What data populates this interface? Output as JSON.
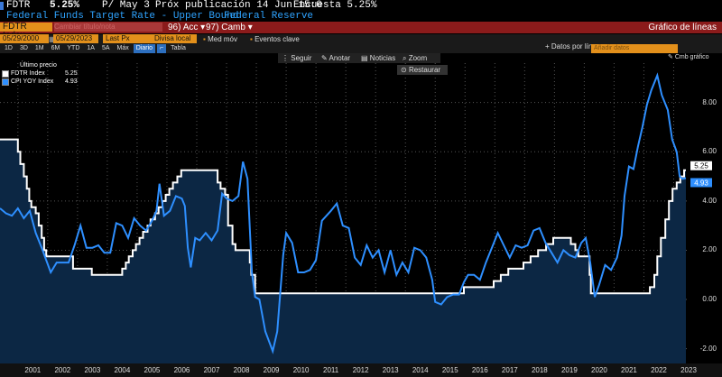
{
  "header": {
    "ticker": "FDTR",
    "value": "5.25%",
    "period": "P/ May 3",
    "next_pub": "Próx publicación 14 Jun 15:0",
    "survey": "Encuesta 5.25%",
    "title": "Federal Funds Target Rate - Upper Bound",
    "source": "Federal Reserve"
  },
  "redbar": {
    "index_label": "FDTR Index",
    "field_placeholder": "Cambiar título/nota",
    "acc_num": "96",
    "acc_label": "Acc",
    "camb_num": "97",
    "camb_label": "Camb",
    "chart_type": "Gráfico de líneas"
  },
  "controls": {
    "start_date": "05/29/2000",
    "end_date": "05/29/2023",
    "field": "Last Px",
    "currency": "Divisa local",
    "med_mov": "Med móv",
    "events": "Eventos clave",
    "periods": [
      "1D",
      "3D",
      "1M",
      "6M",
      "YTD",
      "1A",
      "5A",
      "Máx"
    ],
    "frequency": "Diario",
    "table": "Tabla",
    "data_per": "Datos por lín",
    "add_data": "Añadir datos",
    "chart_menu": "Cmb gráfico"
  },
  "toolbar": {
    "follow": "Seguir",
    "annotate": "Anotar",
    "news": "Noticias",
    "zoom": "Zoom",
    "restore": "Restaurar"
  },
  "legend": {
    "title": "Último precio",
    "items": [
      {
        "name": "FDTR Index",
        "value": "5.25",
        "color": "#ffffff"
      },
      {
        "name": "CPI YOY Index",
        "value": "4.93",
        "color": "#2e8fff"
      }
    ]
  },
  "colors": {
    "area_fill": "#0c2744",
    "fdtr_line": "#ffffff",
    "cpi_line": "#2e8fff",
    "accent": "#e3901b",
    "red": "#8b1b1b"
  },
  "chart_data": {
    "type": "line",
    "title": "",
    "xlabel": "",
    "ylabel": "",
    "ylim": [
      -2.6,
      9.6
    ],
    "y_ticks": [
      "8.00",
      "6.00",
      "4.00",
      "2.00",
      "0.00",
      "-2.00"
    ],
    "x_ticks": [
      "2001",
      "2002",
      "2003",
      "2004",
      "2005",
      "2006",
      "2007",
      "2008",
      "2009",
      "2010",
      "2011",
      "2012",
      "2013",
      "2014",
      "2015",
      "2016",
      "2017",
      "2018",
      "2019",
      "2020",
      "2021",
      "2022",
      "2023"
    ],
    "last_labels": {
      "fdtr": "5.25",
      "cpi": "4.93"
    },
    "series": [
      {
        "name": "FDTR Index",
        "points": [
          [
            2000.4,
            6.5
          ],
          [
            2000.95,
            6.5
          ],
          [
            2001.0,
            6.0
          ],
          [
            2001.08,
            5.5
          ],
          [
            2001.2,
            5.0
          ],
          [
            2001.3,
            4.5
          ],
          [
            2001.38,
            4.0
          ],
          [
            2001.45,
            3.75
          ],
          [
            2001.6,
            3.5
          ],
          [
            2001.7,
            3.0
          ],
          [
            2001.8,
            2.5
          ],
          [
            2001.88,
            2.0
          ],
          [
            2001.95,
            1.75
          ],
          [
            2002.85,
            1.25
          ],
          [
            2003.48,
            1.0
          ],
          [
            2004.5,
            1.25
          ],
          [
            2004.62,
            1.5
          ],
          [
            2004.72,
            1.75
          ],
          [
            2004.85,
            2.0
          ],
          [
            2004.96,
            2.25
          ],
          [
            2005.08,
            2.5
          ],
          [
            2005.2,
            2.75
          ],
          [
            2005.35,
            3.0
          ],
          [
            2005.45,
            3.25
          ],
          [
            2005.6,
            3.5
          ],
          [
            2005.72,
            3.75
          ],
          [
            2005.85,
            4.0
          ],
          [
            2005.96,
            4.25
          ],
          [
            2006.08,
            4.5
          ],
          [
            2006.2,
            4.75
          ],
          [
            2006.35,
            5.0
          ],
          [
            2006.48,
            5.25
          ],
          [
            2007.7,
            4.75
          ],
          [
            2007.8,
            4.5
          ],
          [
            2007.95,
            4.25
          ],
          [
            2008.05,
            3.0
          ],
          [
            2008.2,
            2.25
          ],
          [
            2008.3,
            2.0
          ],
          [
            2008.78,
            1.5
          ],
          [
            2008.83,
            1.0
          ],
          [
            2008.96,
            0.25
          ],
          [
            2015.96,
            0.5
          ],
          [
            2016.96,
            0.75
          ],
          [
            2017.2,
            1.0
          ],
          [
            2017.45,
            1.25
          ],
          [
            2017.96,
            1.5
          ],
          [
            2018.2,
            1.75
          ],
          [
            2018.45,
            2.0
          ],
          [
            2018.72,
            2.25
          ],
          [
            2018.96,
            2.5
          ],
          [
            2019.55,
            2.25
          ],
          [
            2019.7,
            2.0
          ],
          [
            2019.8,
            1.75
          ],
          [
            2020.18,
            1.0
          ],
          [
            2020.22,
            0.25
          ],
          [
            2022.2,
            0.5
          ],
          [
            2022.35,
            1.0
          ],
          [
            2022.45,
            1.75
          ],
          [
            2022.57,
            2.5
          ],
          [
            2022.72,
            3.25
          ],
          [
            2022.84,
            4.0
          ],
          [
            2022.96,
            4.5
          ],
          [
            2023.1,
            4.75
          ],
          [
            2023.22,
            5.0
          ],
          [
            2023.35,
            5.25
          ],
          [
            2023.41,
            5.25
          ]
        ]
      },
      {
        "name": "CPI YOY Index",
        "points": [
          [
            2000.4,
            3.7
          ],
          [
            2000.6,
            3.5
          ],
          [
            2000.8,
            3.4
          ],
          [
            2001.0,
            3.7
          ],
          [
            2001.2,
            3.3
          ],
          [
            2001.4,
            3.6
          ],
          [
            2001.6,
            2.7
          ],
          [
            2001.8,
            2.1
          ],
          [
            2001.95,
            1.6
          ],
          [
            2002.1,
            1.1
          ],
          [
            2002.3,
            1.5
          ],
          [
            2002.5,
            1.5
          ],
          [
            2002.7,
            1.5
          ],
          [
            2002.9,
            2.2
          ],
          [
            2003.1,
            3.0
          ],
          [
            2003.3,
            2.1
          ],
          [
            2003.5,
            2.1
          ],
          [
            2003.7,
            2.2
          ],
          [
            2003.9,
            1.9
          ],
          [
            2004.1,
            1.9
          ],
          [
            2004.3,
            3.1
          ],
          [
            2004.5,
            3.0
          ],
          [
            2004.7,
            2.5
          ],
          [
            2004.9,
            3.3
          ],
          [
            2005.1,
            3.0
          ],
          [
            2005.3,
            2.8
          ],
          [
            2005.5,
            3.2
          ],
          [
            2005.65,
            3.6
          ],
          [
            2005.75,
            4.7
          ],
          [
            2005.9,
            3.4
          ],
          [
            2006.1,
            3.6
          ],
          [
            2006.3,
            4.2
          ],
          [
            2006.5,
            4.1
          ],
          [
            2006.6,
            3.8
          ],
          [
            2006.7,
            2.1
          ],
          [
            2006.8,
            1.3
          ],
          [
            2006.95,
            2.5
          ],
          [
            2007.1,
            2.4
          ],
          [
            2007.3,
            2.7
          ],
          [
            2007.5,
            2.4
          ],
          [
            2007.7,
            2.8
          ],
          [
            2007.85,
            4.3
          ],
          [
            2008.0,
            4.1
          ],
          [
            2008.2,
            4.0
          ],
          [
            2008.4,
            4.2
          ],
          [
            2008.55,
            5.6
          ],
          [
            2008.7,
            4.9
          ],
          [
            2008.85,
            1.1
          ],
          [
            2008.96,
            0.1
          ],
          [
            2009.1,
            0.0
          ],
          [
            2009.3,
            -1.3
          ],
          [
            2009.55,
            -2.1
          ],
          [
            2009.7,
            -1.3
          ],
          [
            2009.9,
            1.8
          ],
          [
            2010.0,
            2.7
          ],
          [
            2010.2,
            2.3
          ],
          [
            2010.4,
            1.1
          ],
          [
            2010.6,
            1.1
          ],
          [
            2010.8,
            1.2
          ],
          [
            2011.0,
            1.6
          ],
          [
            2011.2,
            3.2
          ],
          [
            2011.5,
            3.6
          ],
          [
            2011.7,
            3.9
          ],
          [
            2011.9,
            3.0
          ],
          [
            2012.1,
            2.9
          ],
          [
            2012.3,
            1.7
          ],
          [
            2012.5,
            1.4
          ],
          [
            2012.7,
            2.2
          ],
          [
            2012.9,
            1.7
          ],
          [
            2013.1,
            2.0
          ],
          [
            2013.3,
            1.1
          ],
          [
            2013.5,
            2.0
          ],
          [
            2013.7,
            1.0
          ],
          [
            2013.9,
            1.5
          ],
          [
            2014.1,
            1.1
          ],
          [
            2014.3,
            2.1
          ],
          [
            2014.5,
            2.0
          ],
          [
            2014.7,
            1.7
          ],
          [
            2014.9,
            0.8
          ],
          [
            2015.0,
            -0.1
          ],
          [
            2015.2,
            -0.2
          ],
          [
            2015.4,
            0.1
          ],
          [
            2015.6,
            0.2
          ],
          [
            2015.8,
            0.2
          ],
          [
            2015.96,
            0.7
          ],
          [
            2016.1,
            1.0
          ],
          [
            2016.3,
            1.0
          ],
          [
            2016.5,
            0.8
          ],
          [
            2016.7,
            1.5
          ],
          [
            2016.9,
            2.1
          ],
          [
            2017.1,
            2.7
          ],
          [
            2017.3,
            2.2
          ],
          [
            2017.5,
            1.7
          ],
          [
            2017.7,
            2.2
          ],
          [
            2017.9,
            2.1
          ],
          [
            2018.1,
            2.2
          ],
          [
            2018.3,
            2.8
          ],
          [
            2018.5,
            2.9
          ],
          [
            2018.7,
            2.3
          ],
          [
            2018.9,
            1.9
          ],
          [
            2019.1,
            1.5
          ],
          [
            2019.3,
            2.0
          ],
          [
            2019.5,
            1.8
          ],
          [
            2019.7,
            1.7
          ],
          [
            2019.9,
            2.3
          ],
          [
            2020.05,
            2.5
          ],
          [
            2020.2,
            1.5
          ],
          [
            2020.35,
            0.1
          ],
          [
            2020.5,
            0.6
          ],
          [
            2020.7,
            1.4
          ],
          [
            2020.9,
            1.2
          ],
          [
            2021.1,
            1.7
          ],
          [
            2021.25,
            2.6
          ],
          [
            2021.35,
            4.2
          ],
          [
            2021.5,
            5.4
          ],
          [
            2021.65,
            5.3
          ],
          [
            2021.8,
            6.2
          ],
          [
            2021.95,
            7.0
          ],
          [
            2022.1,
            7.9
          ],
          [
            2022.25,
            8.5
          ],
          [
            2022.45,
            9.1
          ],
          [
            2022.6,
            8.3
          ],
          [
            2022.8,
            7.7
          ],
          [
            2022.95,
            6.5
          ],
          [
            2023.1,
            6.0
          ],
          [
            2023.2,
            5.0
          ],
          [
            2023.3,
            4.9
          ],
          [
            2023.41,
            4.93
          ]
        ]
      }
    ]
  }
}
